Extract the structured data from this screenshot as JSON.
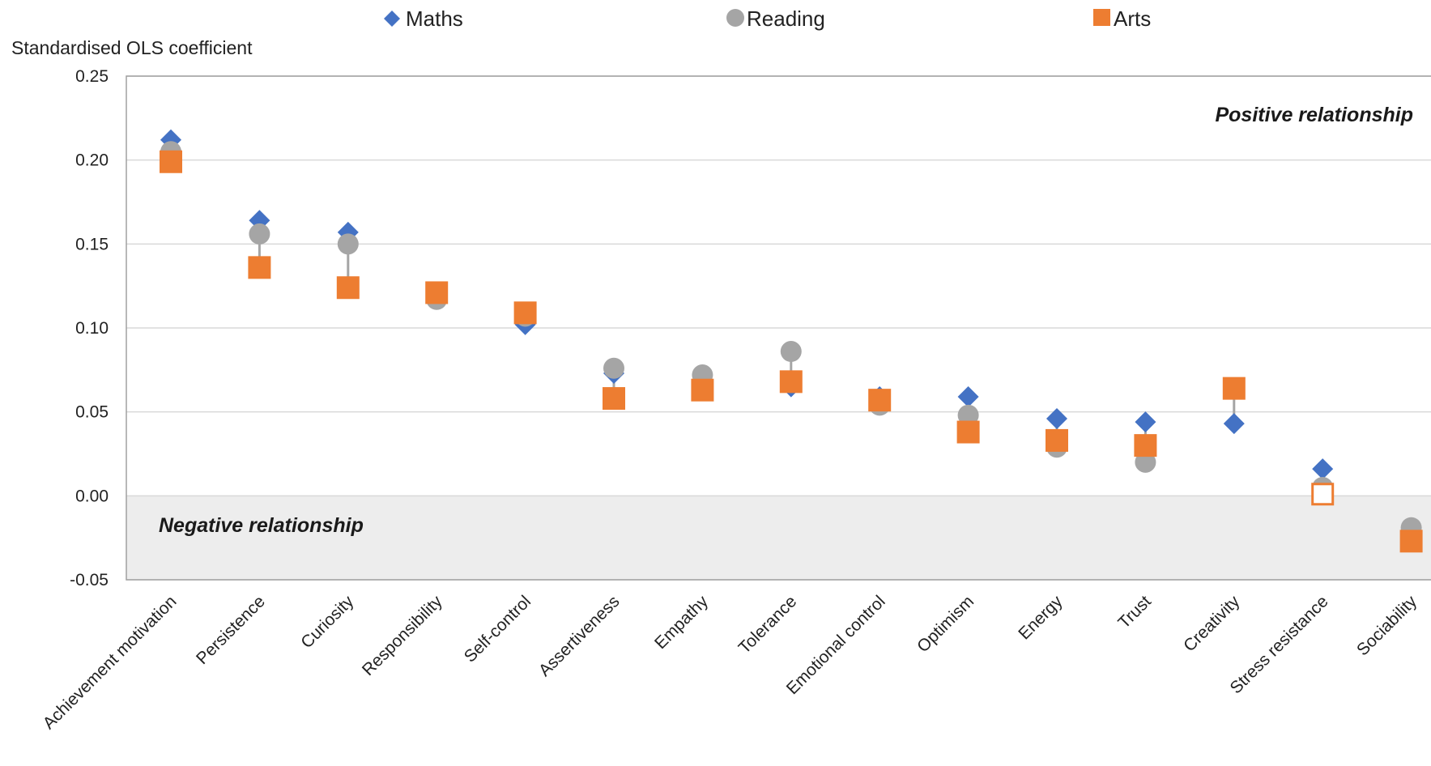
{
  "chart_data": {
    "type": "scatter",
    "ylabel": "Standardised OLS coefficient",
    "ylim": [
      -0.05,
      0.25
    ],
    "yticks": [
      "0.25",
      "0.20",
      "0.15",
      "0.10",
      "0.05",
      "0.00",
      "-0.05"
    ],
    "ytick_values": [
      0.25,
      0.2,
      0.15,
      0.1,
      0.05,
      0.0,
      -0.05
    ],
    "grid": true,
    "legend_position": "top",
    "categories": [
      "Achievement motivation",
      "Persistence",
      "Curiosity",
      "Responsibility",
      "Self-control",
      "Assertiveness",
      "Empathy",
      "Tolerance",
      "Emotional control",
      "Optimism",
      "Energy",
      "Trust",
      "Creativity",
      "Stress resistance",
      "Sociability"
    ],
    "series": [
      {
        "name": "Maths",
        "marker": "diamond",
        "color": "#4472C4",
        "values": [
          0.212,
          0.164,
          0.157,
          0.119,
          0.102,
          0.073,
          0.067,
          0.065,
          0.059,
          0.059,
          0.046,
          0.044,
          0.043,
          0.016,
          -0.025
        ]
      },
      {
        "name": "Reading",
        "marker": "circle",
        "color": "#A5A5A5",
        "values": [
          0.205,
          0.156,
          0.15,
          0.117,
          0.107,
          0.076,
          0.072,
          0.086,
          0.054,
          0.048,
          0.029,
          0.02,
          0.064,
          0.005,
          -0.019
        ]
      },
      {
        "name": "Arts",
        "marker": "square",
        "color": "#ED7D31",
        "values": [
          0.199,
          0.136,
          0.124,
          0.121,
          0.109,
          0.058,
          0.063,
          0.068,
          0.057,
          0.038,
          0.033,
          0.03,
          0.064,
          0.001,
          -0.027
        ],
        "hollow_indices": [
          13
        ]
      }
    ],
    "annotations": {
      "positive": "Positive relationship",
      "negative": "Negative relationship"
    }
  }
}
